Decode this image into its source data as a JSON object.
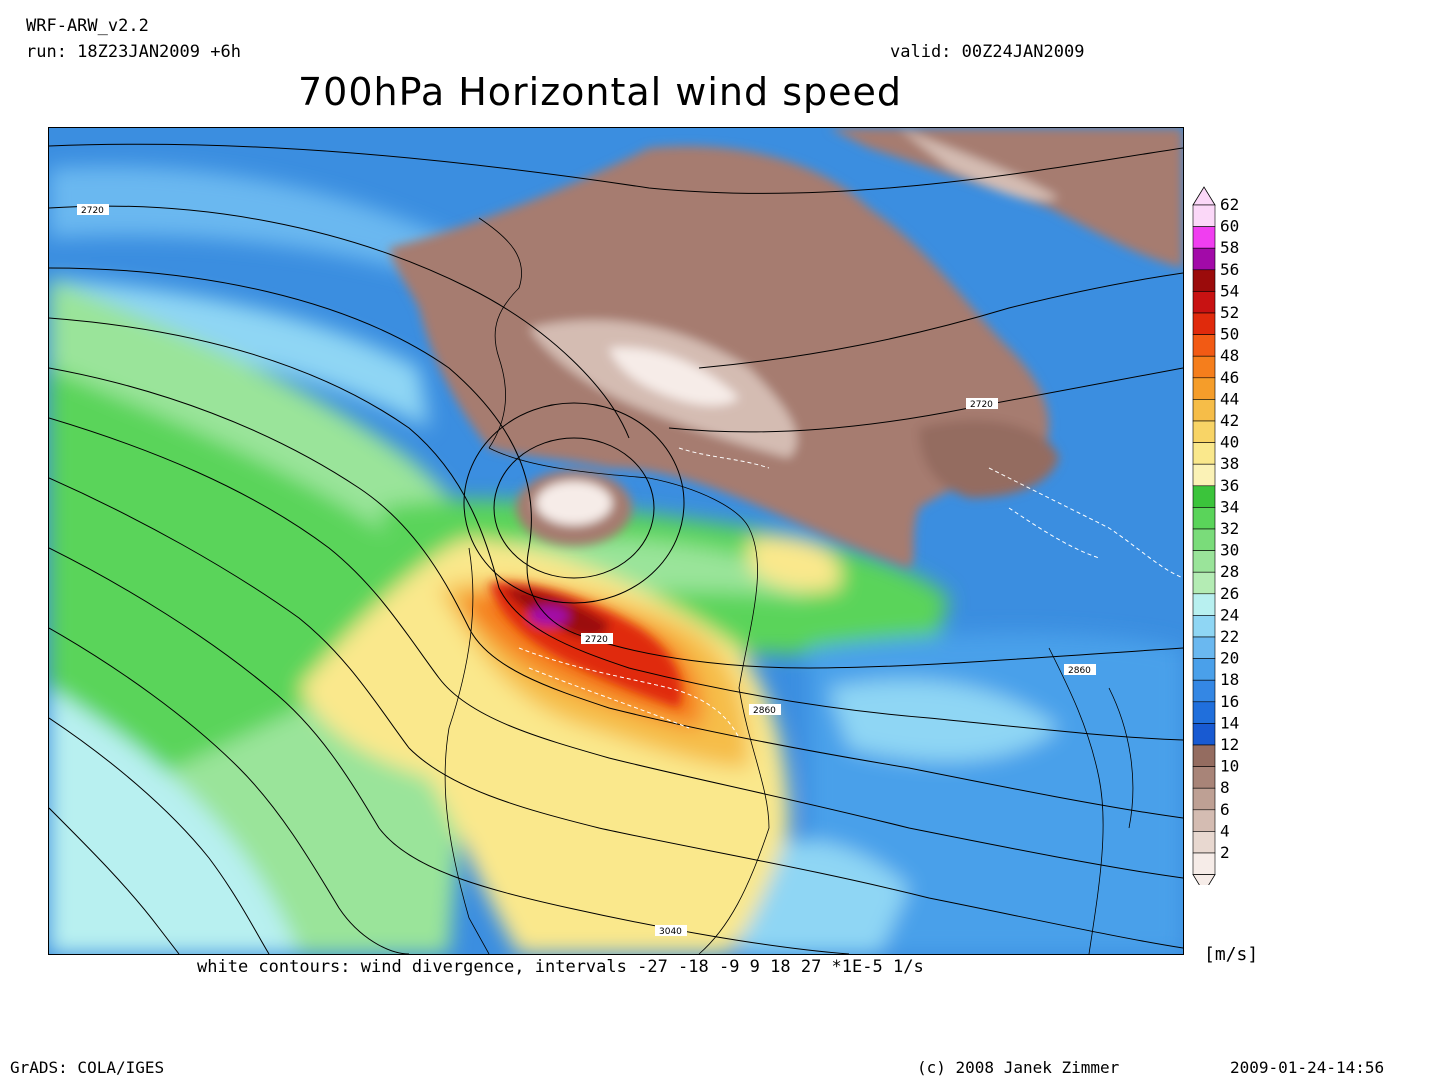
{
  "header": {
    "model": "WRF-ARW_v2.2",
    "run": "run: 18Z23JAN2009 +6h",
    "valid": "valid: 00Z24JAN2009",
    "title": "700hPa Horizontal wind speed"
  },
  "caption": "white contours: wind divergence, intervals -27 -18 -9 9 18 27 *1E-5 1/s",
  "units": "[m/s]",
  "footer": {
    "software": "GrADS: COLA/IGES",
    "credit": "(c) 2008 Janek Zimmer",
    "timestamp": "2009-01-24-14:56"
  },
  "colorbar": {
    "levels": [
      "62",
      "60",
      "58",
      "56",
      "54",
      "52",
      "50",
      "48",
      "46",
      "44",
      "42",
      "40",
      "38",
      "36",
      "34",
      "32",
      "30",
      "28",
      "26",
      "24",
      "22",
      "20",
      "18",
      "16",
      "14",
      "12",
      "10",
      "8",
      "6",
      "4",
      "2"
    ],
    "colors": [
      "#fbd8f8",
      "#f03ef0",
      "#a20aa8",
      "#9b0b0b",
      "#c81212",
      "#e02a0c",
      "#f25a14",
      "#f57e1c",
      "#f59d2a",
      "#f6bd48",
      "#f8d466",
      "#fae88c",
      "#fbf2b6",
      "#3bc43b",
      "#5ad45a",
      "#7adc7a",
      "#9ae49a",
      "#b4ecb4",
      "#b8f0f0",
      "#8fd6f4",
      "#6ab8f0",
      "#4aa0ea",
      "#3487e4",
      "#206fdc",
      "#185ad2",
      "#946c60",
      "#a88478",
      "#bea094",
      "#d4bcb2",
      "#e8d8d0",
      "#f6ece8"
    ]
  },
  "contour_labels": [
    "2720",
    "2720",
    "2720",
    "2860",
    "2860",
    "3040"
  ],
  "colors": {
    "ocean_blue": "#3b8ee0",
    "land_brown": "#a67c70",
    "jet_core": "#9b0b0b"
  }
}
